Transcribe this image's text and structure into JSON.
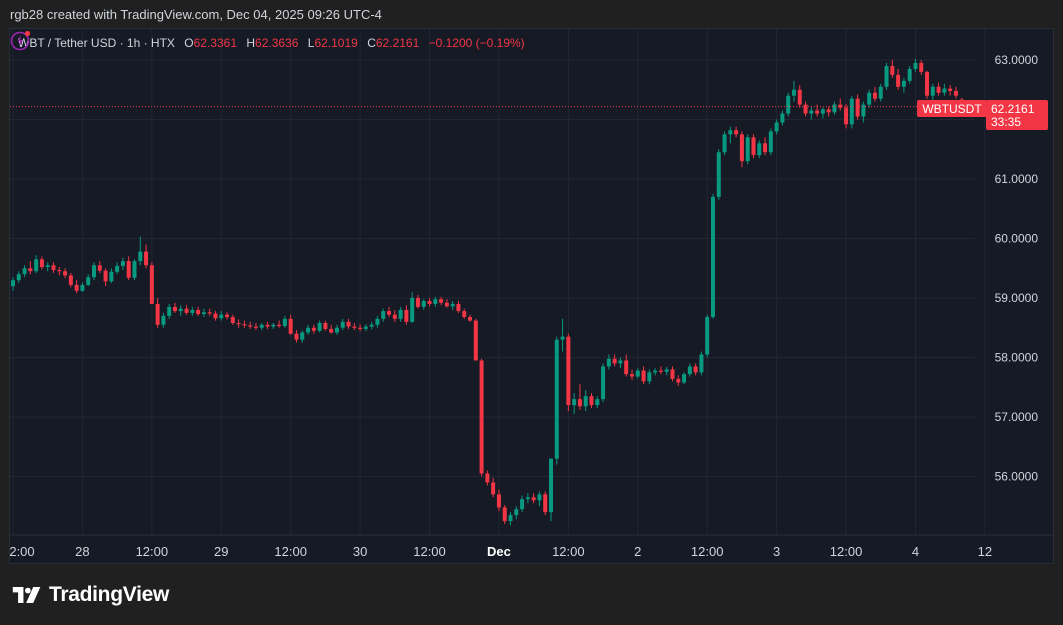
{
  "header": {
    "created_text": "rgb28 created with TradingView.com, Dec 04, 2025 09:26 UTC-4"
  },
  "legend": {
    "symbol": "WBT / Tether USD · 1h · HTX",
    "open_label": "O",
    "open": "62.3361",
    "high_label": "H",
    "high": "62.3636",
    "low_label": "L",
    "low": "62.1019",
    "close_label": "C",
    "close": "62.2161",
    "change": "−0.1200 (−0.19%)"
  },
  "price_tag": {
    "symbol": "WBTUSDT",
    "price": "62.2161",
    "countdown": "33:35"
  },
  "brand": {
    "name": "TradingView"
  },
  "colors": {
    "up": "#089981",
    "down": "#f23645",
    "background": "#161a25",
    "grid": "#222632"
  },
  "chart_data": {
    "type": "candlestick",
    "interval": "1h",
    "ylim": [
      55.2,
      63.3
    ],
    "y_ticks": [
      "56.0000",
      "57.0000",
      "58.0000",
      "59.0000",
      "60.0000",
      "61.0000",
      "62.0000",
      "63.0000"
    ],
    "x_ticks": [
      {
        "label": "2:00",
        "index": 0,
        "bold": false
      },
      {
        "label": "28",
        "index": 12,
        "bold": false
      },
      {
        "label": "12:00",
        "index": 24,
        "bold": false
      },
      {
        "label": "29",
        "index": 36,
        "bold": false
      },
      {
        "label": "12:00",
        "index": 48,
        "bold": false
      },
      {
        "label": "30",
        "index": 60,
        "bold": false
      },
      {
        "label": "12:00",
        "index": 72,
        "bold": false
      },
      {
        "label": "Dec",
        "index": 84,
        "bold": true
      },
      {
        "label": "12:00",
        "index": 96,
        "bold": false
      },
      {
        "label": "2",
        "index": 108,
        "bold": false
      },
      {
        "label": "12:00",
        "index": 120,
        "bold": false
      },
      {
        "label": "3",
        "index": 132,
        "bold": false
      },
      {
        "label": "12:00",
        "index": 144,
        "bold": false
      },
      {
        "label": "4",
        "index": 156,
        "bold": false
      },
      {
        "label": "12",
        "index": 168,
        "bold": false
      }
    ],
    "last_price": 62.2161,
    "candles": [
      [
        59.2,
        59.35,
        59.12,
        59.3
      ],
      [
        59.3,
        59.45,
        59.25,
        59.4
      ],
      [
        59.4,
        59.55,
        59.35,
        59.5
      ],
      [
        59.5,
        59.62,
        59.4,
        59.45
      ],
      [
        59.45,
        59.72,
        59.42,
        59.65
      ],
      [
        59.65,
        59.7,
        59.48,
        59.52
      ],
      [
        59.52,
        59.6,
        59.45,
        59.55
      ],
      [
        59.55,
        59.6,
        59.42,
        59.47
      ],
      [
        59.47,
        59.52,
        59.38,
        59.45
      ],
      [
        59.45,
        59.5,
        59.33,
        59.38
      ],
      [
        59.38,
        59.42,
        59.18,
        59.22
      ],
      [
        59.22,
        59.3,
        59.08,
        59.12
      ],
      [
        59.12,
        59.26,
        59.1,
        59.22
      ],
      [
        59.22,
        59.4,
        59.2,
        59.35
      ],
      [
        59.35,
        59.6,
        59.3,
        59.55
      ],
      [
        59.55,
        59.62,
        59.42,
        59.46
      ],
      [
        59.46,
        59.5,
        59.2,
        59.28
      ],
      [
        59.28,
        59.5,
        59.25,
        59.44
      ],
      [
        59.44,
        59.6,
        59.4,
        59.54
      ],
      [
        59.54,
        59.68,
        59.47,
        59.62
      ],
      [
        59.62,
        59.7,
        59.3,
        59.34
      ],
      [
        59.34,
        59.65,
        59.3,
        59.62
      ],
      [
        59.62,
        60.03,
        59.55,
        59.78
      ],
      [
        59.78,
        59.9,
        59.5,
        59.55
      ],
      [
        59.55,
        59.6,
        58.9,
        58.9
      ],
      [
        58.9,
        59.0,
        58.5,
        58.55
      ],
      [
        58.55,
        58.75,
        58.5,
        58.7
      ],
      [
        58.7,
        58.9,
        58.65,
        58.85
      ],
      [
        58.85,
        58.92,
        58.75,
        58.78
      ],
      [
        58.78,
        58.88,
        58.7,
        58.82
      ],
      [
        58.82,
        58.88,
        58.72,
        58.75
      ],
      [
        58.75,
        58.85,
        58.7,
        58.8
      ],
      [
        58.8,
        58.85,
        58.7,
        58.73
      ],
      [
        58.73,
        58.82,
        58.68,
        58.76
      ],
      [
        58.76,
        58.82,
        58.7,
        58.74
      ],
      [
        58.74,
        58.78,
        58.62,
        58.66
      ],
      [
        58.66,
        58.78,
        58.62,
        58.72
      ],
      [
        58.72,
        58.76,
        58.64,
        58.68
      ],
      [
        58.68,
        58.72,
        58.55,
        58.58
      ],
      [
        58.58,
        58.64,
        58.5,
        58.56
      ],
      [
        58.56,
        58.62,
        58.5,
        58.54
      ],
      [
        58.54,
        58.6,
        58.48,
        58.52
      ],
      [
        58.52,
        58.58,
        58.46,
        58.5
      ],
      [
        58.5,
        58.58,
        58.46,
        58.55
      ],
      [
        58.55,
        58.6,
        58.48,
        58.52
      ],
      [
        58.52,
        58.58,
        58.48,
        58.55
      ],
      [
        58.55,
        58.62,
        58.5,
        58.53
      ],
      [
        58.53,
        58.7,
        58.5,
        58.65
      ],
      [
        58.65,
        58.72,
        58.38,
        58.4
      ],
      [
        58.4,
        58.46,
        58.25,
        58.3
      ],
      [
        58.3,
        58.45,
        58.25,
        58.42
      ],
      [
        58.42,
        58.55,
        58.38,
        58.5
      ],
      [
        58.5,
        58.55,
        58.4,
        58.45
      ],
      [
        58.45,
        58.62,
        58.42,
        58.58
      ],
      [
        58.58,
        58.62,
        58.45,
        58.48
      ],
      [
        58.48,
        58.55,
        58.4,
        58.42
      ],
      [
        58.42,
        58.55,
        58.38,
        58.5
      ],
      [
        58.5,
        58.65,
        58.46,
        58.6
      ],
      [
        58.6,
        58.65,
        58.48,
        58.52
      ],
      [
        58.52,
        58.58,
        58.46,
        58.5
      ],
      [
        58.5,
        58.56,
        58.44,
        58.48
      ],
      [
        58.48,
        58.56,
        58.44,
        58.52
      ],
      [
        58.52,
        58.6,
        58.47,
        58.55
      ],
      [
        58.55,
        58.7,
        58.5,
        58.65
      ],
      [
        58.65,
        58.82,
        58.6,
        58.78
      ],
      [
        58.78,
        58.85,
        58.68,
        58.72
      ],
      [
        58.72,
        58.8,
        58.6,
        58.65
      ],
      [
        58.65,
        58.85,
        58.6,
        58.8
      ],
      [
        58.8,
        58.88,
        58.55,
        58.6
      ],
      [
        58.6,
        59.1,
        58.58,
        59.0
      ],
      [
        59.0,
        59.05,
        58.82,
        58.85
      ],
      [
        58.85,
        58.98,
        58.8,
        58.95
      ],
      [
        58.95,
        59.0,
        58.86,
        58.9
      ],
      [
        58.9,
        59.02,
        58.85,
        58.98
      ],
      [
        58.98,
        59.02,
        58.88,
        58.92
      ],
      [
        58.92,
        58.98,
        58.84,
        58.86
      ],
      [
        58.86,
        58.95,
        58.8,
        58.9
      ],
      [
        58.9,
        58.95,
        58.75,
        58.78
      ],
      [
        58.78,
        58.82,
        58.65,
        58.68
      ],
      [
        58.68,
        58.72,
        58.6,
        58.62
      ],
      [
        58.62,
        58.65,
        57.95,
        57.95
      ],
      [
        57.95,
        57.98,
        56.0,
        56.05
      ],
      [
        56.05,
        56.1,
        55.85,
        55.9
      ],
      [
        55.9,
        55.98,
        55.65,
        55.7
      ],
      [
        55.7,
        55.78,
        55.42,
        55.48
      ],
      [
        55.48,
        55.52,
        55.2,
        55.25
      ],
      [
        55.25,
        55.4,
        55.18,
        55.35
      ],
      [
        55.35,
        55.5,
        55.28,
        55.45
      ],
      [
        55.45,
        55.68,
        55.4,
        55.62
      ],
      [
        55.62,
        55.72,
        55.55,
        55.65
      ],
      [
        55.65,
        55.72,
        55.55,
        55.6
      ],
      [
        55.6,
        55.75,
        55.5,
        55.7
      ],
      [
        55.7,
        55.75,
        55.35,
        55.4
      ],
      [
        55.4,
        56.3,
        55.25,
        56.3
      ],
      [
        56.3,
        58.35,
        56.2,
        58.3
      ],
      [
        58.3,
        58.65,
        58.1,
        58.35
      ],
      [
        58.35,
        58.4,
        57.1,
        57.2
      ],
      [
        57.2,
        57.4,
        57.05,
        57.3
      ],
      [
        57.3,
        57.55,
        57.12,
        57.18
      ],
      [
        57.18,
        57.45,
        57.1,
        57.35
      ],
      [
        57.35,
        57.4,
        57.15,
        57.2
      ],
      [
        57.2,
        57.35,
        57.15,
        57.3
      ],
      [
        57.3,
        57.9,
        57.25,
        57.85
      ],
      [
        57.85,
        58.05,
        57.8,
        57.98
      ],
      [
        57.98,
        58.05,
        57.85,
        57.9
      ],
      [
        57.9,
        58.0,
        57.82,
        57.95
      ],
      [
        57.95,
        58.05,
        57.68,
        57.72
      ],
      [
        57.72,
        57.8,
        57.62,
        57.68
      ],
      [
        57.68,
        57.82,
        57.65,
        57.78
      ],
      [
        57.78,
        57.85,
        57.55,
        57.6
      ],
      [
        57.6,
        57.8,
        57.55,
        57.75
      ],
      [
        57.75,
        57.82,
        57.7,
        57.78
      ],
      [
        57.78,
        57.85,
        57.72,
        57.76
      ],
      [
        57.76,
        57.84,
        57.7,
        57.8
      ],
      [
        57.8,
        57.85,
        57.6,
        57.64
      ],
      [
        57.64,
        57.7,
        57.52,
        57.58
      ],
      [
        57.58,
        57.75,
        57.55,
        57.72
      ],
      [
        57.72,
        57.9,
        57.68,
        57.85
      ],
      [
        57.85,
        57.9,
        57.7,
        57.75
      ],
      [
        57.75,
        58.1,
        57.7,
        58.05
      ],
      [
        58.05,
        58.72,
        58.0,
        58.68
      ],
      [
        58.68,
        60.75,
        58.65,
        60.7
      ],
      [
        60.7,
        61.5,
        60.65,
        61.45
      ],
      [
        61.45,
        61.8,
        61.4,
        61.75
      ],
      [
        61.75,
        61.88,
        61.6,
        61.82
      ],
      [
        61.82,
        61.88,
        61.7,
        61.75
      ],
      [
        61.75,
        61.8,
        61.2,
        61.3
      ],
      [
        61.3,
        61.75,
        61.25,
        61.7
      ],
      [
        61.7,
        61.75,
        61.35,
        61.4
      ],
      [
        61.4,
        61.65,
        61.35,
        61.6
      ],
      [
        61.6,
        61.7,
        61.4,
        61.45
      ],
      [
        61.45,
        61.85,
        61.4,
        61.8
      ],
      [
        61.8,
        62.0,
        61.75,
        61.95
      ],
      [
        61.95,
        62.15,
        61.9,
        62.1
      ],
      [
        62.1,
        62.45,
        62.05,
        62.4
      ],
      [
        62.4,
        62.65,
        62.3,
        62.5
      ],
      [
        62.5,
        62.58,
        62.2,
        62.25
      ],
      [
        62.25,
        62.3,
        62.05,
        62.1
      ],
      [
        62.1,
        62.22,
        62.0,
        62.15
      ],
      [
        62.15,
        62.25,
        62.05,
        62.1
      ],
      [
        62.1,
        62.2,
        62.02,
        62.17
      ],
      [
        62.17,
        62.22,
        62.05,
        62.12
      ],
      [
        62.12,
        62.3,
        62.08,
        62.25
      ],
      [
        62.25,
        62.35,
        62.15,
        62.2
      ],
      [
        62.2,
        62.26,
        61.85,
        61.92
      ],
      [
        61.92,
        62.4,
        61.85,
        62.35
      ],
      [
        62.35,
        62.42,
        62.0,
        62.05
      ],
      [
        62.05,
        62.3,
        61.95,
        62.25
      ],
      [
        62.25,
        62.5,
        62.2,
        62.45
      ],
      [
        62.45,
        62.55,
        62.3,
        62.35
      ],
      [
        62.35,
        62.6,
        62.3,
        62.55
      ],
      [
        62.55,
        62.95,
        62.5,
        62.9
      ],
      [
        62.9,
        63.0,
        62.7,
        62.75
      ],
      [
        62.75,
        62.85,
        62.5,
        62.55
      ],
      [
        62.55,
        62.7,
        62.45,
        62.65
      ],
      [
        62.65,
        62.9,
        62.6,
        62.85
      ],
      [
        62.85,
        63.02,
        62.8,
        62.95
      ],
      [
        62.95,
        63.0,
        62.75,
        62.8
      ],
      [
        62.8,
        62.82,
        62.35,
        62.4
      ],
      [
        62.4,
        62.6,
        62.3,
        62.55
      ],
      [
        62.55,
        62.62,
        62.4,
        62.45
      ],
      [
        62.45,
        62.6,
        62.4,
        62.52
      ],
      [
        62.52,
        62.58,
        62.4,
        62.48
      ],
      [
        62.48,
        62.55,
        62.35,
        62.4
      ],
      [
        62.3361,
        62.3636,
        62.1019,
        62.2161
      ]
    ]
  }
}
